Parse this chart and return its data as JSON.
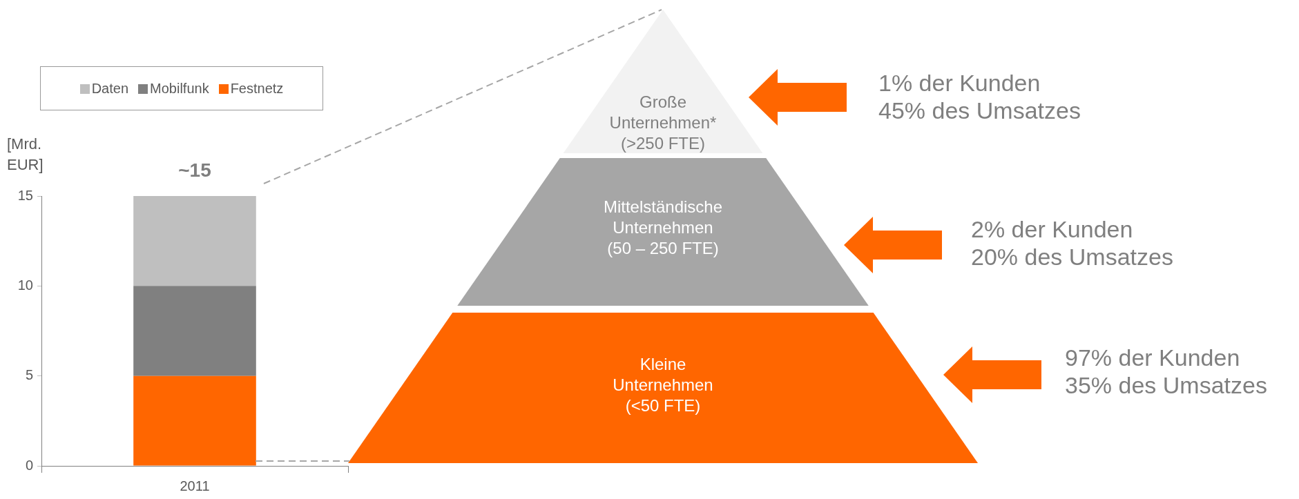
{
  "chart_data": [
    {
      "type": "bar",
      "categories": [
        "2011"
      ],
      "stacked": true,
      "ylabel": "[Mrd. EUR]",
      "ylim": [
        0,
        15
      ],
      "yticks": [
        0,
        5,
        10,
        15
      ],
      "legend": "top left",
      "totals": [
        "~15"
      ],
      "series": [
        {
          "name": "Festnetz",
          "color": "#ff6600",
          "values": [
            5
          ]
        },
        {
          "name": "Mobilfunk",
          "color": "#808080",
          "values": [
            5
          ]
        },
        {
          "name": "Daten",
          "color": "#bfbfbf",
          "values": [
            5
          ]
        }
      ]
    },
    {
      "type": "other",
      "annotations": [
        "Große\nUnternehmen*\n(>250 FTE)",
        "Mittelständische\nUnternehmen\n(50 – 250 FTE)",
        "Kleine\nUnternehmen\n(<50 FTE)",
        "1% der Kunden\n45% des Umsatzes",
        "2% der Kunden\n20% des Umsatzes",
        "97% der Kunden\n35% des Umsatzes"
      ]
    }
  ]
}
